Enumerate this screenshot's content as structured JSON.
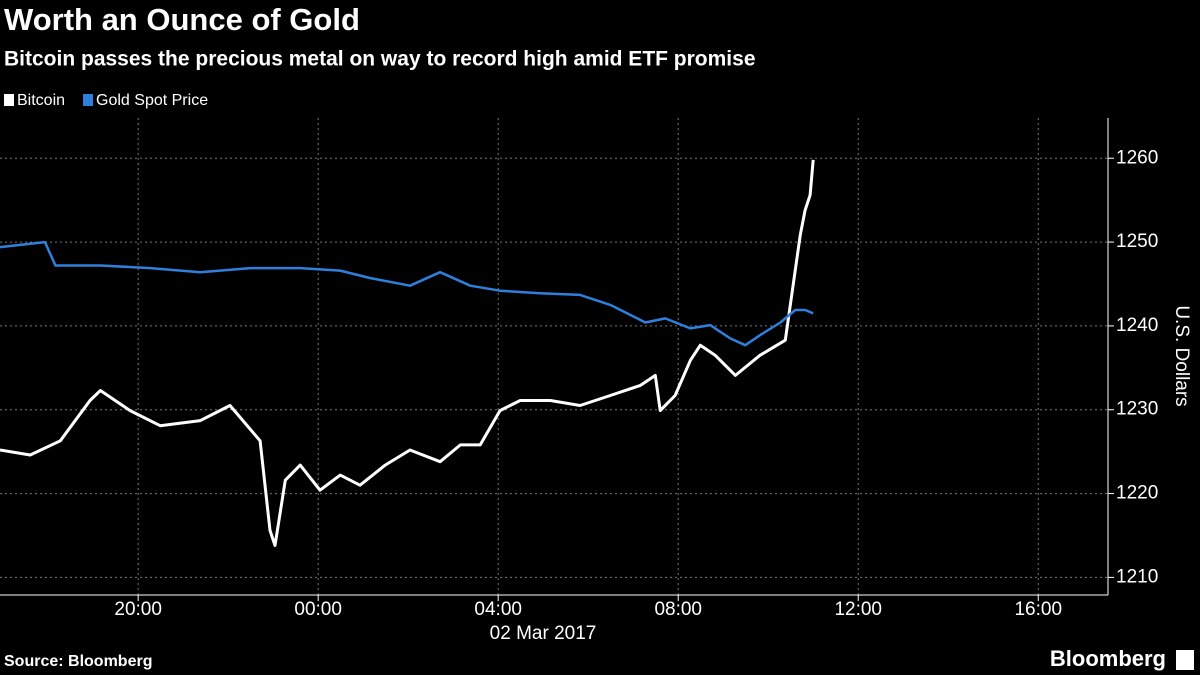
{
  "chart_data": {
    "type": "line",
    "title": "Worth an Ounce of Gold",
    "subtitle": "Bitcoin passes the precious metal on way to record high amid ETF promise",
    "y_label": "U.S. Dollars",
    "date_label": "02 Mar 2017",
    "source": "Source: Bloomberg",
    "brand": "Bloomberg",
    "xlim": [
      -7.07,
      17.55
    ],
    "xticks": [
      {
        "value": -4,
        "label": "20:00"
      },
      {
        "value": 0,
        "label": "00:00"
      },
      {
        "value": 4,
        "label": "04:00"
      },
      {
        "value": 8,
        "label": "08:00"
      },
      {
        "value": 12,
        "label": "12:00"
      },
      {
        "value": 16,
        "label": "16:00"
      }
    ],
    "ylim": [
      1207.9,
      1264.8
    ],
    "yticks": [
      1210,
      1220,
      1230,
      1240,
      1250,
      1260
    ],
    "grid": true,
    "series": [
      {
        "name": "Bitcoin",
        "color": "#ffffff",
        "x": [
          -7.07,
          -6.4,
          -5.73,
          -5.07,
          -4.84,
          -4.18,
          -3.51,
          -2.62,
          -1.96,
          -1.29,
          -1.07,
          -0.96,
          -0.73,
          -0.4,
          0.04,
          0.49,
          0.93,
          1.49,
          2.04,
          2.71,
          3.16,
          3.6,
          4.04,
          4.49,
          5.16,
          5.82,
          6.49,
          7.16,
          7.49,
          7.6,
          7.93,
          8.27,
          8.49,
          8.82,
          9.27,
          9.82,
          10.38,
          10.6,
          10.71,
          10.82,
          10.93,
          11.0
        ],
        "values": [
          1225.2,
          1224.6,
          1226.3,
          1231.1,
          1232.3,
          1229.9,
          1228.1,
          1228.7,
          1230.5,
          1226.3,
          1215.6,
          1213.8,
          1221.6,
          1223.4,
          1220.4,
          1222.2,
          1221.0,
          1223.4,
          1225.2,
          1223.8,
          1225.8,
          1225.8,
          1229.9,
          1231.1,
          1231.1,
          1230.5,
          1231.7,
          1232.9,
          1234.1,
          1229.9,
          1231.7,
          1235.9,
          1237.7,
          1236.5,
          1234.1,
          1236.5,
          1238.3,
          1246.6,
          1250.8,
          1253.8,
          1255.6,
          1259.8
        ]
      },
      {
        "name": "Gold Spot Price",
        "color": "#2f80dd",
        "x": [
          -7.07,
          -6.07,
          -5.84,
          -4.84,
          -3.73,
          -2.62,
          -1.51,
          -0.4,
          0.49,
          1.16,
          2.04,
          2.71,
          3.38,
          4.04,
          4.93,
          5.82,
          6.49,
          7.27,
          7.71,
          8.27,
          8.71,
          9.16,
          9.49,
          9.82,
          10.27,
          10.6,
          10.82,
          11.0
        ],
        "values": [
          1249.4,
          1250.0,
          1247.2,
          1247.2,
          1246.9,
          1246.4,
          1246.9,
          1246.9,
          1246.6,
          1245.7,
          1244.8,
          1246.4,
          1244.8,
          1244.2,
          1243.9,
          1243.7,
          1242.5,
          1240.4,
          1240.9,
          1239.7,
          1240.1,
          1238.5,
          1237.7,
          1238.9,
          1240.4,
          1241.9,
          1241.9,
          1241.5
        ]
      }
    ]
  }
}
